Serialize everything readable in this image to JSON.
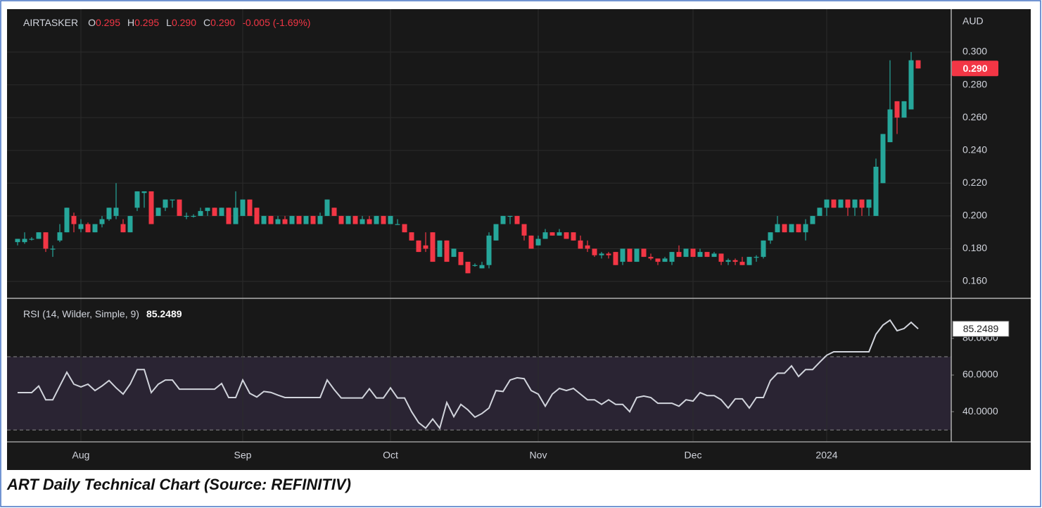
{
  "chart_data": [
    {
      "type": "candlestick",
      "name": "AIRTASKER",
      "header": {
        "symbol": "AIRTASKER",
        "fields": [
          {
            "key": "O",
            "value": "0.295"
          },
          {
            "key": "H",
            "value": "0.295"
          },
          {
            "key": "L",
            "value": "0.290"
          },
          {
            "key": "C",
            "value": "0.290"
          }
        ],
        "change": "-0.005 (-1.69%)"
      },
      "y_axis_label": "AUD",
      "last_price_label": "0.290",
      "up_color": "#26a69a",
      "down_color": "#f23645",
      "grid": true,
      "xlim": [
        -1.5,
        132.7
      ],
      "ylim": [
        0.1497,
        0.3262
      ],
      "yticks": [
        {
          "value": 0.16,
          "label": "0.160"
        },
        {
          "value": 0.18,
          "label": "0.180"
        },
        {
          "value": 0.2,
          "label": "0.200"
        },
        {
          "value": 0.22,
          "label": "0.220"
        },
        {
          "value": 0.24,
          "label": "0.240"
        },
        {
          "value": 0.26,
          "label": "0.260"
        },
        {
          "value": 0.28,
          "label": "0.280"
        },
        {
          "value": 0.3,
          "label": "0.300"
        }
      ],
      "xticks": [
        {
          "value": 9,
          "label": "Aug"
        },
        {
          "value": 32,
          "label": "Sep"
        },
        {
          "value": 53,
          "label": "Oct"
        },
        {
          "value": 74,
          "label": "Nov"
        },
        {
          "value": 96,
          "label": "Dec"
        },
        {
          "value": 115,
          "label": "2024"
        }
      ],
      "x": [
        0,
        1,
        2,
        3,
        4,
        5,
        6,
        7,
        8,
        9,
        10,
        11,
        12,
        13,
        14,
        15,
        16,
        17,
        18,
        19,
        20,
        21,
        22,
        23,
        24,
        25,
        26,
        27,
        28,
        29,
        30,
        31,
        32,
        33,
        34,
        35,
        36,
        37,
        38,
        39,
        40,
        41,
        42,
        43,
        44,
        45,
        46,
        47,
        48,
        49,
        50,
        51,
        52,
        53,
        54,
        55,
        56,
        57,
        58,
        59,
        60,
        61,
        62,
        63,
        64,
        65,
        66,
        67,
        68,
        69,
        70,
        71,
        72,
        73,
        74,
        75,
        76,
        77,
        78,
        79,
        80,
        81,
        82,
        83,
        84,
        85,
        86,
        87,
        88,
        89,
        90,
        91,
        92,
        93,
        94,
        95,
        96,
        97,
        98,
        99,
        100,
        101,
        102,
        103,
        104,
        105,
        106,
        107,
        108,
        109,
        110,
        111,
        112,
        113,
        114,
        115,
        116,
        117,
        118,
        119,
        120,
        121,
        122,
        123,
        124,
        125,
        126,
        127,
        128
      ],
      "open": [
        0.184,
        0.184,
        0.186,
        0.186,
        0.19,
        0.18,
        0.185,
        0.19,
        0.2,
        0.192,
        0.195,
        0.19,
        0.195,
        0.198,
        0.2,
        0.195,
        0.19,
        0.205,
        0.214,
        0.215,
        0.2,
        0.205,
        0.21,
        0.21,
        0.2,
        0.2,
        0.2,
        0.203,
        0.205,
        0.2,
        0.205,
        0.195,
        0.2,
        0.21,
        0.205,
        0.195,
        0.2,
        0.195,
        0.198,
        0.195,
        0.2,
        0.195,
        0.2,
        0.195,
        0.2,
        0.205,
        0.2,
        0.195,
        0.2,
        0.195,
        0.198,
        0.195,
        0.2,
        0.195,
        0.195,
        0.195,
        0.19,
        0.185,
        0.182,
        0.19,
        0.175,
        0.185,
        0.175,
        0.178,
        0.172,
        0.17,
        0.168,
        0.17,
        0.185,
        0.195,
        0.2,
        0.2,
        0.195,
        0.188,
        0.182,
        0.186,
        0.19,
        0.188,
        0.19,
        0.19,
        0.185,
        0.182,
        0.18,
        0.176,
        0.177,
        0.178,
        0.172,
        0.18,
        0.172,
        0.18,
        0.175,
        0.174,
        0.172,
        0.172,
        0.178,
        0.175,
        0.18,
        0.175,
        0.178,
        0.175,
        0.177,
        0.172,
        0.173,
        0.172,
        0.17,
        0.175,
        0.175,
        0.185,
        0.19,
        0.195,
        0.19,
        0.195,
        0.19,
        0.195,
        0.2,
        0.205,
        0.21,
        0.205,
        0.21,
        0.205,
        0.21,
        0.205,
        0.2,
        0.22,
        0.245,
        0.27,
        0.26,
        0.265,
        0.295
      ],
      "high": [
        0.186,
        0.19,
        0.187,
        0.19,
        0.19,
        0.182,
        0.195,
        0.205,
        0.202,
        0.198,
        0.196,
        0.195,
        0.2,
        0.205,
        0.22,
        0.198,
        0.2,
        0.215,
        0.215,
        0.215,
        0.205,
        0.21,
        0.21,
        0.21,
        0.202,
        0.201,
        0.205,
        0.205,
        0.205,
        0.205,
        0.205,
        0.215,
        0.21,
        0.21,
        0.205,
        0.2,
        0.2,
        0.2,
        0.2,
        0.2,
        0.2,
        0.2,
        0.2,
        0.202,
        0.21,
        0.205,
        0.2,
        0.2,
        0.2,
        0.2,
        0.2,
        0.2,
        0.2,
        0.2,
        0.198,
        0.195,
        0.19,
        0.185,
        0.19,
        0.19,
        0.185,
        0.185,
        0.18,
        0.178,
        0.172,
        0.171,
        0.172,
        0.19,
        0.195,
        0.2,
        0.2,
        0.2,
        0.195,
        0.188,
        0.188,
        0.192,
        0.19,
        0.192,
        0.19,
        0.19,
        0.188,
        0.185,
        0.18,
        0.178,
        0.178,
        0.178,
        0.18,
        0.18,
        0.18,
        0.18,
        0.177,
        0.174,
        0.175,
        0.178,
        0.182,
        0.18,
        0.18,
        0.18,
        0.178,
        0.178,
        0.177,
        0.174,
        0.174,
        0.175,
        0.175,
        0.176,
        0.185,
        0.19,
        0.2,
        0.195,
        0.195,
        0.195,
        0.198,
        0.2,
        0.205,
        0.21,
        0.21,
        0.21,
        0.21,
        0.21,
        0.21,
        0.21,
        0.235,
        0.25,
        0.295,
        0.27,
        0.27,
        0.3,
        0.295
      ],
      "low": [
        0.182,
        0.183,
        0.185,
        0.186,
        0.178,
        0.175,
        0.184,
        0.19,
        0.19,
        0.19,
        0.19,
        0.19,
        0.193,
        0.197,
        0.198,
        0.19,
        0.19,
        0.203,
        0.205,
        0.195,
        0.2,
        0.203,
        0.205,
        0.2,
        0.198,
        0.199,
        0.2,
        0.2,
        0.2,
        0.2,
        0.195,
        0.195,
        0.2,
        0.2,
        0.195,
        0.195,
        0.195,
        0.195,
        0.195,
        0.195,
        0.195,
        0.195,
        0.195,
        0.195,
        0.2,
        0.2,
        0.195,
        0.195,
        0.195,
        0.195,
        0.195,
        0.195,
        0.195,
        0.195,
        0.195,
        0.19,
        0.185,
        0.178,
        0.178,
        0.172,
        0.175,
        0.172,
        0.175,
        0.17,
        0.165,
        0.169,
        0.168,
        0.168,
        0.185,
        0.195,
        0.195,
        0.195,
        0.185,
        0.18,
        0.182,
        0.186,
        0.188,
        0.188,
        0.186,
        0.185,
        0.18,
        0.178,
        0.175,
        0.174,
        0.174,
        0.17,
        0.17,
        0.172,
        0.172,
        0.175,
        0.173,
        0.17,
        0.172,
        0.17,
        0.175,
        0.175,
        0.175,
        0.175,
        0.175,
        0.175,
        0.17,
        0.17,
        0.17,
        0.17,
        0.17,
        0.172,
        0.174,
        0.183,
        0.19,
        0.19,
        0.19,
        0.19,
        0.185,
        0.195,
        0.2,
        0.2,
        0.205,
        0.205,
        0.2,
        0.2,
        0.2,
        0.2,
        0.2,
        0.22,
        0.245,
        0.25,
        0.26,
        0.265,
        0.29
      ],
      "close": [
        0.186,
        0.186,
        0.186,
        0.19,
        0.18,
        0.18,
        0.19,
        0.205,
        0.195,
        0.195,
        0.19,
        0.195,
        0.198,
        0.205,
        0.205,
        0.19,
        0.2,
        0.215,
        0.215,
        0.195,
        0.205,
        0.21,
        0.21,
        0.2,
        0.2,
        0.2,
        0.203,
        0.205,
        0.2,
        0.205,
        0.195,
        0.205,
        0.21,
        0.2,
        0.195,
        0.2,
        0.195,
        0.198,
        0.195,
        0.2,
        0.195,
        0.2,
        0.195,
        0.2,
        0.21,
        0.2,
        0.195,
        0.2,
        0.195,
        0.198,
        0.195,
        0.2,
        0.195,
        0.2,
        0.195,
        0.19,
        0.185,
        0.178,
        0.18,
        0.172,
        0.185,
        0.172,
        0.18,
        0.17,
        0.165,
        0.17,
        0.17,
        0.188,
        0.195,
        0.2,
        0.2,
        0.195,
        0.188,
        0.18,
        0.186,
        0.19,
        0.188,
        0.19,
        0.186,
        0.185,
        0.18,
        0.18,
        0.176,
        0.177,
        0.176,
        0.17,
        0.18,
        0.172,
        0.18,
        0.175,
        0.174,
        0.172,
        0.174,
        0.178,
        0.175,
        0.18,
        0.175,
        0.178,
        0.175,
        0.177,
        0.172,
        0.173,
        0.172,
        0.17,
        0.175,
        0.175,
        0.185,
        0.19,
        0.195,
        0.19,
        0.195,
        0.19,
        0.195,
        0.2,
        0.205,
        0.21,
        0.205,
        0.21,
        0.205,
        0.21,
        0.205,
        0.21,
        0.23,
        0.25,
        0.265,
        0.26,
        0.27,
        0.295,
        0.29
      ]
    },
    {
      "type": "line",
      "title": "RSI (14, Wilder, Simple, 9)",
      "color": "#d1d4dc",
      "ylim": [
        23.5,
        101.9
      ],
      "yticks": [
        {
          "value": 40,
          "label": "40.0000"
        },
        {
          "value": 60,
          "label": "60.0000"
        },
        {
          "value": 80,
          "label": "80.0000"
        }
      ],
      "levels": [
        70,
        30
      ],
      "band_color": "#2a2433",
      "values": [
        50.4,
        50.4,
        50.4,
        54,
        46.5,
        46.5,
        54,
        61.5,
        55,
        53.5,
        55,
        51.5,
        54,
        57,
        53,
        49.6,
        55,
        63,
        63,
        50.4,
        55,
        57.3,
        57.3,
        52.3,
        52.3,
        52.3,
        52.3,
        52.3,
        52.3,
        55.4,
        47.7,
        47.7,
        57.3,
        50,
        48,
        51,
        50.5,
        49,
        47.7,
        47.7,
        47.7,
        47.7,
        47.7,
        47.7,
        57.3,
        52,
        47.5,
        47.5,
        47.5,
        47.5,
        52.5,
        47.5,
        47.5,
        53,
        47.5,
        47.5,
        40,
        34,
        31,
        36,
        31,
        45,
        37.3,
        44,
        41,
        37,
        39,
        42,
        51.5,
        51,
        57.3,
        58.5,
        58,
        51.5,
        49.6,
        43,
        49.6,
        52.7,
        51.5,
        52.7,
        49.6,
        46.5,
        46.5,
        44,
        46.5,
        44,
        44,
        40,
        47.7,
        48.5,
        47.7,
        44.6,
        44.6,
        44.6,
        43,
        46.5,
        45.8,
        50.4,
        48.8,
        48.8,
        46.5,
        42,
        47,
        47,
        42,
        47.7,
        47.7,
        57,
        61,
        61,
        65,
        59.2,
        63,
        63,
        67,
        70.8,
        72.7,
        72.7,
        72.7,
        72.7,
        72.7,
        72.7,
        82.3,
        87.3,
        90,
        84.2,
        85.4,
        88.8,
        85.2489
      ]
    }
  ],
  "caption": "ART Daily Technical Chart (Source: REFINITIV)"
}
